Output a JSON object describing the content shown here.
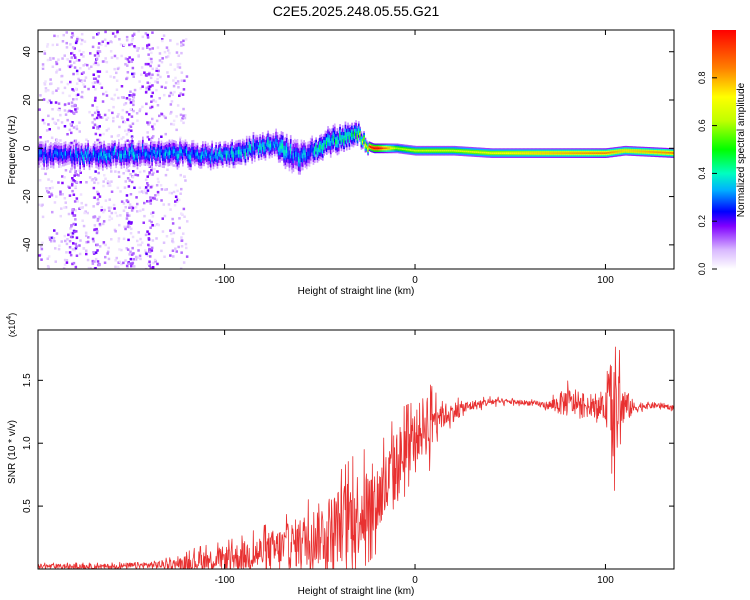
{
  "title": "C2E5.2025.248.05.55.G21",
  "chart_data": [
    {
      "type": "heatmap",
      "name": "spectrogram",
      "xlabel": "Height of straight line (km)",
      "ylabel": "Frequency (Hz)",
      "xlim": [
        -198,
        136
      ],
      "ylim": [
        -50,
        49
      ],
      "xticks": [
        -100,
        0,
        100
      ],
      "yticks": [
        -40,
        -20,
        0,
        20,
        40
      ],
      "ridge": {
        "x": [
          -198,
          -170,
          -150,
          -130,
          -110,
          -95,
          -85,
          -75,
          -70,
          -65,
          -60,
          -55,
          -50,
          -45,
          -40,
          -35,
          -30,
          -25,
          -22,
          -20,
          -10,
          0,
          20,
          40,
          60,
          80,
          100,
          110,
          136
        ],
        "center": [
          -3,
          -3,
          -2,
          -2,
          -3,
          -2,
          0,
          2,
          0,
          -3,
          -4,
          -1,
          0,
          3,
          4,
          5,
          6,
          1,
          0,
          0,
          0,
          -1,
          -1,
          -2,
          -2,
          -2,
          -2,
          -1,
          -2
        ],
        "halfwidth": [
          4,
          4,
          4,
          4,
          4,
          4,
          4,
          4,
          5,
          6,
          5,
          4,
          4,
          5,
          4,
          4,
          3,
          2,
          2,
          2,
          2,
          2,
          2,
          2,
          2,
          2,
          2,
          2,
          2
        ],
        "peak": [
          0.25,
          0.3,
          0.3,
          0.3,
          0.3,
          0.35,
          0.35,
          0.35,
          0.4,
          0.3,
          0.3,
          0.35,
          0.4,
          0.4,
          0.4,
          0.4,
          0.5,
          0.9,
          1.0,
          1.0,
          0.55,
          0.6,
          0.6,
          0.65,
          0.7,
          0.75,
          0.8,
          0.7,
          0.8
        ]
      },
      "scatter_region_x": [
        -198,
        -120
      ],
      "colorbar": {
        "label": "Normalized spectral amplitude",
        "range": [
          0,
          1
        ],
        "ticks": [
          0,
          0.2,
          0.4,
          0.6,
          0.8
        ],
        "tick_labels": [
          "0.0",
          "0.2",
          "0.4",
          "0.6",
          "0.8"
        ]
      }
    },
    {
      "type": "line",
      "name": "snr",
      "xlabel": "Height of straight line (km)",
      "ylabel": "SNR (10 * v/v)",
      "multiplier_label": "(x10",
      "multiplier_exp": "4",
      "xlim": [
        -198,
        136
      ],
      "ylim": [
        0,
        1.9
      ],
      "xticks": [
        -100,
        0,
        100
      ],
      "yticks": [
        0.5,
        1.0,
        1.5
      ],
      "ytick_labels": [
        "0.5",
        "1.0",
        "1.5"
      ],
      "color": "#e83030",
      "series": {
        "x": [
          -198,
          -180,
          -160,
          -140,
          -125,
          -115,
          -100,
          -90,
          -80,
          -70,
          -60,
          -50,
          -40,
          -30,
          -20,
          -15,
          -10,
          -5,
          0,
          5,
          8,
          10,
          12,
          15,
          20,
          30,
          40,
          50,
          60,
          70,
          75,
          80,
          85,
          90,
          95,
          100,
          103,
          105,
          108,
          110,
          115,
          120,
          130,
          136
        ],
        "y": [
          0.02,
          0.02,
          0.02,
          0.03,
          0.04,
          0.06,
          0.08,
          0.1,
          0.13,
          0.16,
          0.22,
          0.28,
          0.35,
          0.45,
          0.55,
          0.65,
          0.8,
          0.95,
          1.05,
          1.15,
          1.2,
          1.22,
          1.25,
          1.22,
          1.25,
          1.3,
          1.33,
          1.33,
          1.32,
          1.3,
          1.31,
          1.33,
          1.3,
          1.3,
          1.28,
          1.28,
          1.35,
          1.3,
          1.25,
          1.3,
          1.28,
          1.3,
          1.3,
          1.28
        ],
        "noise": [
          0.02,
          0.02,
          0.02,
          0.03,
          0.04,
          0.08,
          0.1,
          0.12,
          0.15,
          0.18,
          0.2,
          0.25,
          0.3,
          0.35,
          0.3,
          0.3,
          0.32,
          0.25,
          0.2,
          0.25,
          0.3,
          0.25,
          0.15,
          0.1,
          0.08,
          0.04,
          0.03,
          0.02,
          0.02,
          0.03,
          0.08,
          0.12,
          0.08,
          0.06,
          0.08,
          0.1,
          0.4,
          0.5,
          0.3,
          0.15,
          0.05,
          0.03,
          0.02,
          0.02
        ]
      }
    }
  ]
}
